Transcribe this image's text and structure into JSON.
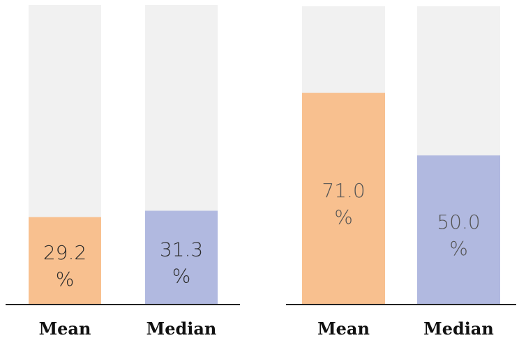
{
  "chart_data": [
    {
      "type": "bar",
      "categories": [
        "Mean",
        "Median"
      ],
      "values": [
        29.2,
        31.3
      ],
      "unit": "%",
      "ylim": [
        0,
        100
      ],
      "bar_colors": [
        "#f8c08f",
        "#b1b9e0"
      ],
      "background_color": "#f1f1f1",
      "label_color": "#2b2b2b",
      "grid": false
    },
    {
      "type": "bar",
      "categories": [
        "Mean",
        "Median"
      ],
      "values": [
        71.0,
        50.0
      ],
      "unit": "%",
      "ylim": [
        0,
        100
      ],
      "bar_colors": [
        "#f8c08f",
        "#b1b9e0"
      ],
      "background_color": "#f1f1f1",
      "label_color": "#555555",
      "grid": false
    }
  ]
}
